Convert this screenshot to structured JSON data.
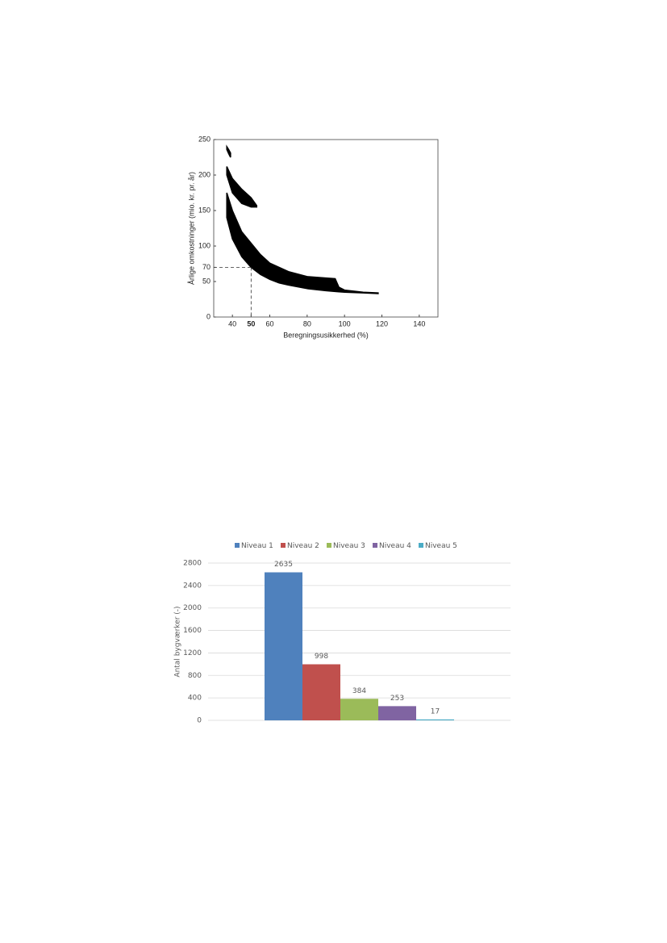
{
  "chart_data": [
    {
      "type": "area",
      "x_label": "Beregningsusikkerhed (%)",
      "y_label": "Årlige omkostninger (mio. kr. pr. år)",
      "xlim": [
        30,
        150
      ],
      "ylim": [
        0,
        250
      ],
      "xticks": [
        40,
        50,
        60,
        80,
        100,
        120,
        140
      ],
      "yticks": [
        0,
        50,
        70,
        100,
        150,
        200,
        250
      ],
      "reference": {
        "x": 50,
        "y": 70
      },
      "color": "#000000",
      "series": [
        {
          "x": [
            37,
            38,
            39
          ],
          "upper": [
            240,
            236,
            231
          ],
          "lower": [
            236,
            230,
            225
          ]
        },
        {
          "x": [
            37,
            40,
            45,
            50,
            53
          ],
          "upper": [
            212,
            195,
            180,
            168,
            157
          ],
          "lower": [
            200,
            175,
            160,
            155,
            155
          ]
        },
        {
          "x": [
            37,
            40,
            45,
            50,
            55,
            60,
            65,
            70,
            80,
            90,
            95,
            97,
            100,
            110,
            118
          ],
          "upper": [
            175,
            150,
            120,
            104,
            88,
            76,
            70,
            64,
            57,
            55,
            54,
            42,
            38,
            35,
            34
          ],
          "lower": [
            140,
            110,
            85,
            70,
            60,
            53,
            48,
            45,
            40,
            37,
            36,
            35.5,
            35,
            34,
            33
          ]
        }
      ]
    },
    {
      "type": "bar",
      "y_label": "Antal bygværker (-)",
      "ylim": [
        0,
        2800
      ],
      "yticks": [
        0,
        400,
        800,
        1200,
        1600,
        2000,
        2400,
        2800
      ],
      "grid": true,
      "legend": "top",
      "series": [
        {
          "name": "Niveau 1",
          "color": "#4f81bd",
          "values": [
            2635
          ]
        },
        {
          "name": "Niveau 2",
          "color": "#c0504d",
          "values": [
            998
          ]
        },
        {
          "name": "Niveau 3",
          "color": "#9bbb59",
          "values": [
            384
          ]
        },
        {
          "name": "Niveau 4",
          "color": "#8064a2",
          "values": [
            253
          ]
        },
        {
          "name": "Niveau 5",
          "color": "#4bacc6",
          "values": [
            17
          ]
        }
      ]
    }
  ]
}
